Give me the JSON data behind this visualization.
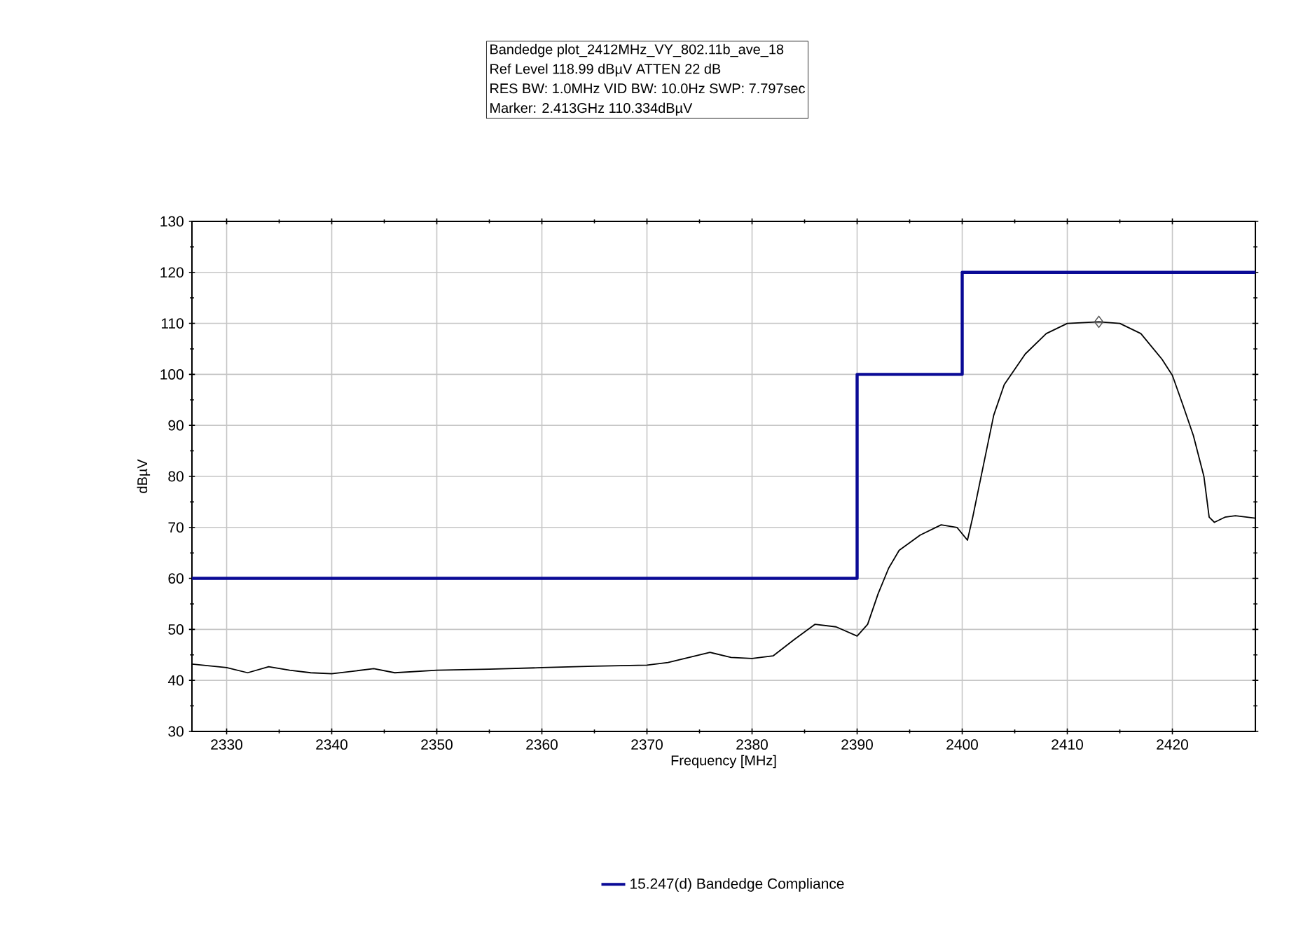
{
  "chart_data": {
    "type": "line",
    "xlabel": "Frequency [MHz]",
    "ylabel": "dBµV",
    "annotations": [
      "Bandedge plot_2412MHz_VY_802.11b_ave_18",
      "Ref Level 118.99 dBµV    ATTEN 22 dB",
      "RES BW: 1.0MHz  VID BW: 10.0Hz  SWP: 7.797sec",
      "Marker: 2.413GHz  110.334dBµV"
    ],
    "xlim": [
      2326.7,
      2427.9
    ],
    "ylim": [
      30,
      130
    ],
    "xticks": [
      2330,
      2340,
      2350,
      2360,
      2370,
      2380,
      2390,
      2400,
      2410,
      2420
    ],
    "yticks": [
      30,
      40,
      50,
      60,
      70,
      80,
      90,
      100,
      110,
      120,
      130
    ],
    "grid": true,
    "legend": "bottom",
    "series": [
      {
        "color": "#000000",
        "marker": "none",
        "x": [
          2326.7,
          2330,
          2332,
          2334,
          2336,
          2338,
          2340,
          2342,
          2344,
          2346,
          2350,
          2355,
          2360,
          2365,
          2370,
          2372,
          2374,
          2376,
          2378,
          2380,
          2382,
          2384,
          2386,
          2388,
          2390,
          2391,
          2392,
          2393,
          2394,
          2396,
          2398,
          2399.5,
          2400.5,
          2401,
          2402,
          2403,
          2404,
          2406,
          2408,
          2410,
          2412,
          2413,
          2415,
          2417,
          2419,
          2420,
          2421,
          2422,
          2423,
          2423.5,
          2424,
          2425,
          2426,
          2427.9
        ],
        "values": [
          43.2,
          42.5,
          41.5,
          42.7,
          42,
          41.5,
          41.3,
          41.8,
          42.3,
          41.5,
          42,
          42.2,
          42.5,
          42.8,
          43,
          43.5,
          44.5,
          45.5,
          44.5,
          44.3,
          44.8,
          48,
          51,
          50.5,
          48.7,
          51,
          57,
          62,
          65.5,
          68.5,
          70.5,
          70,
          67.5,
          72,
          82,
          92,
          98,
          104,
          108,
          110,
          110.2,
          110.3,
          110,
          108,
          103,
          99.8,
          94,
          88,
          80,
          72,
          71,
          72,
          72.3,
          71.8
        ]
      },
      {
        "type": "step",
        "name": "15.247(d) Bandedge Compliance",
        "color": "#0a0a96",
        "marker": "none",
        "x": [
          2326.7,
          2390,
          2400,
          2427.9
        ],
        "values": [
          60,
          100,
          120,
          120
        ]
      },
      {
        "type": "scatter",
        "color": "#555555",
        "marker": "diamond",
        "x": [
          2413
        ],
        "values": [
          110.3
        ]
      }
    ]
  }
}
